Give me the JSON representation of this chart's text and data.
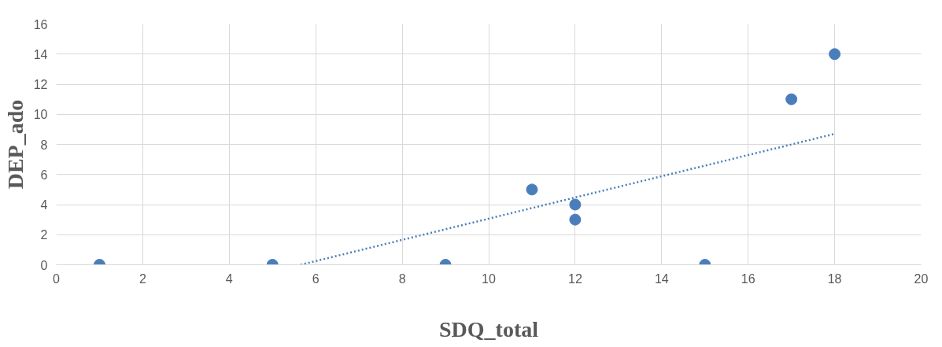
{
  "chart_data": {
    "type": "scatter",
    "xlabel": "SDQ_total",
    "ylabel": "DEP_ado",
    "xlim": [
      0,
      20
    ],
    "xticks": [
      0,
      2,
      4,
      6,
      8,
      10,
      12,
      14,
      16,
      18,
      20
    ],
    "ylim": [
      0,
      16
    ],
    "yticks": [
      0,
      2,
      4,
      6,
      8,
      10,
      12,
      14,
      16
    ],
    "grid": true,
    "series": [
      {
        "marker": "circle",
        "color": "#4a7ebb",
        "x": [
          1,
          5,
          9,
          11,
          12,
          12,
          15,
          17,
          18
        ],
        "values": [
          0,
          0,
          0,
          5,
          4,
          3,
          0,
          11,
          14
        ]
      },
      {
        "type": "line",
        "marker": "none",
        "color": "#4a7ebb",
        "line_style": "dotted",
        "x": [
          5.65,
          18
        ],
        "values": [
          0,
          8.7
        ]
      }
    ]
  }
}
